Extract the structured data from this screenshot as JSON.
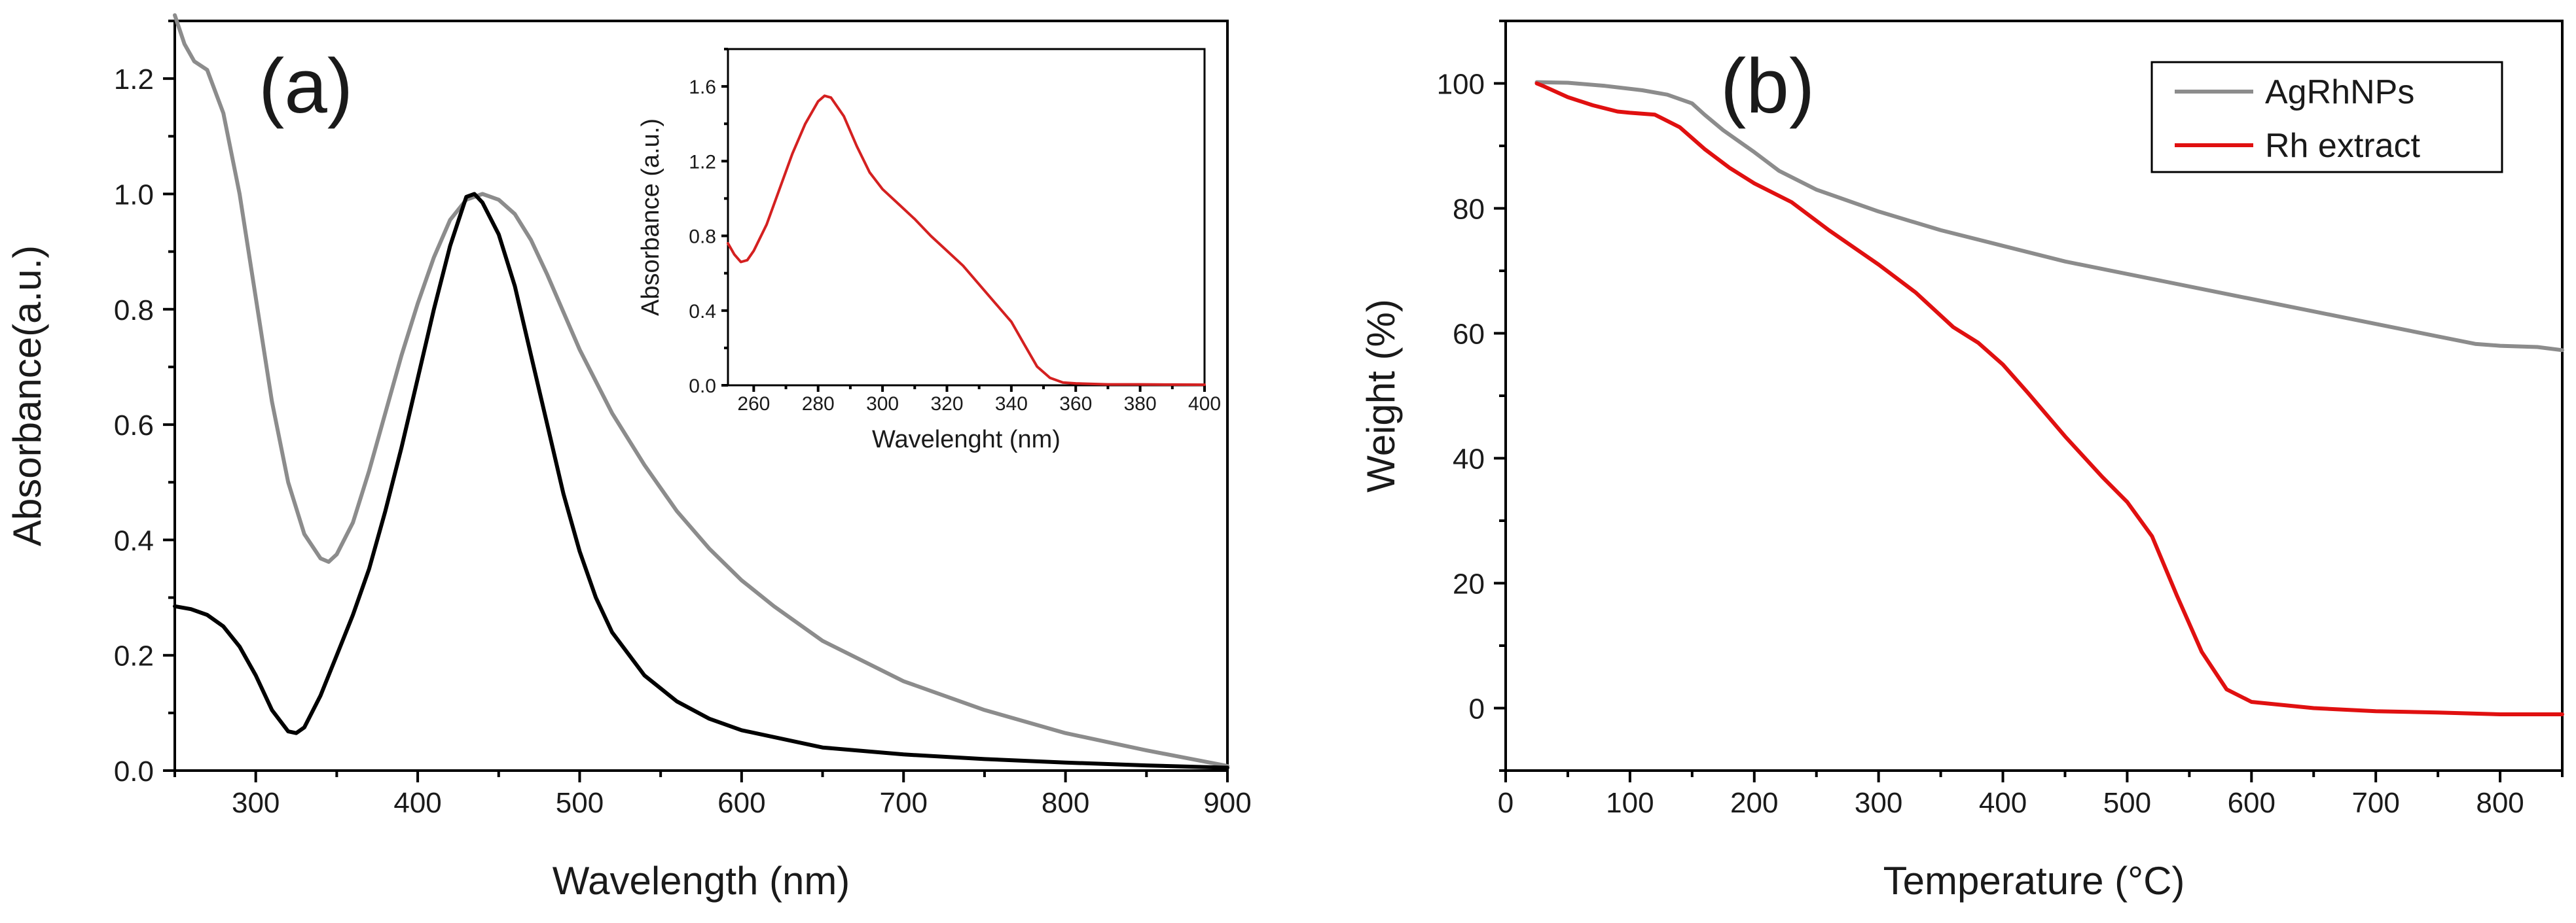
{
  "chart_data": [
    {
      "id": "a",
      "type": "line",
      "panel_label": "(a)",
      "xlabel": "Wavelength (nm)",
      "ylabel": "Absorbance(a.u.)",
      "xlim": [
        250,
        900
      ],
      "ylim": [
        0.0,
        1.3
      ],
      "xticks": [
        300,
        400,
        500,
        600,
        700,
        800,
        900
      ],
      "yticks": [
        0.0,
        0.2,
        0.4,
        0.6,
        0.8,
        1.0,
        1.2
      ],
      "x_tick_labels": [
        "300",
        "400",
        "500",
        "600",
        "700",
        "800",
        "900"
      ],
      "y_tick_labels": [
        "0.0",
        "0.2",
        "0.4",
        "0.6",
        "0.8",
        "1.0",
        "1.2"
      ],
      "series": [
        {
          "name": "gray spectrum",
          "color": "#8c8c8c",
          "points": [
            [
              250,
              1.31
            ],
            [
              256,
              1.26
            ],
            [
              262,
              1.23
            ],
            [
              270,
              1.215
            ],
            [
              280,
              1.14
            ],
            [
              290,
              1.0
            ],
            [
              300,
              0.82
            ],
            [
              310,
              0.64
            ],
            [
              320,
              0.5
            ],
            [
              330,
              0.41
            ],
            [
              340,
              0.368
            ],
            [
              345,
              0.362
            ],
            [
              350,
              0.375
            ],
            [
              360,
              0.43
            ],
            [
              370,
              0.52
            ],
            [
              380,
              0.62
            ],
            [
              390,
              0.72
            ],
            [
              400,
              0.81
            ],
            [
              410,
              0.89
            ],
            [
              420,
              0.955
            ],
            [
              430,
              0.99
            ],
            [
              440,
              1.0
            ],
            [
              450,
              0.99
            ],
            [
              460,
              0.965
            ],
            [
              470,
              0.92
            ],
            [
              480,
              0.86
            ],
            [
              490,
              0.795
            ],
            [
              500,
              0.73
            ],
            [
              520,
              0.62
            ],
            [
              540,
              0.53
            ],
            [
              560,
              0.45
            ],
            [
              580,
              0.385
            ],
            [
              600,
              0.33
            ],
            [
              620,
              0.285
            ],
            [
              650,
              0.225
            ],
            [
              700,
              0.155
            ],
            [
              750,
              0.105
            ],
            [
              800,
              0.065
            ],
            [
              850,
              0.035
            ],
            [
              900,
              0.008
            ]
          ]
        },
        {
          "name": "black spectrum",
          "color": "#000000",
          "points": [
            [
              250,
              0.285
            ],
            [
              260,
              0.28
            ],
            [
              270,
              0.27
            ],
            [
              280,
              0.25
            ],
            [
              290,
              0.215
            ],
            [
              300,
              0.165
            ],
            [
              310,
              0.105
            ],
            [
              320,
              0.068
            ],
            [
              325,
              0.065
            ],
            [
              330,
              0.075
            ],
            [
              340,
              0.13
            ],
            [
              350,
              0.2
            ],
            [
              360,
              0.27
            ],
            [
              370,
              0.35
            ],
            [
              380,
              0.45
            ],
            [
              390,
              0.56
            ],
            [
              400,
              0.68
            ],
            [
              410,
              0.8
            ],
            [
              420,
              0.91
            ],
            [
              430,
              0.995
            ],
            [
              435,
              1.0
            ],
            [
              440,
              0.985
            ],
            [
              450,
              0.93
            ],
            [
              460,
              0.84
            ],
            [
              470,
              0.72
            ],
            [
              480,
              0.6
            ],
            [
              490,
              0.48
            ],
            [
              500,
              0.38
            ],
            [
              510,
              0.3
            ],
            [
              520,
              0.24
            ],
            [
              540,
              0.165
            ],
            [
              560,
              0.12
            ],
            [
              580,
              0.09
            ],
            [
              600,
              0.07
            ],
            [
              650,
              0.04
            ],
            [
              700,
              0.028
            ],
            [
              750,
              0.02
            ],
            [
              800,
              0.014
            ],
            [
              850,
              0.009
            ],
            [
              900,
              0.005
            ]
          ]
        }
      ],
      "inset": {
        "type": "line",
        "xlabel": "Wavelenght (nm)",
        "ylabel": "Absorbance (a.u.)",
        "xlim": [
          252,
          400
        ],
        "ylim": [
          0.0,
          1.8
        ],
        "xticks": [
          260,
          280,
          300,
          320,
          340,
          360,
          380,
          400
        ],
        "yticks": [
          0.0,
          0.4,
          0.8,
          1.2,
          1.6
        ],
        "x_tick_labels": [
          "260",
          "280",
          "300",
          "320",
          "340",
          "360",
          "380",
          "400"
        ],
        "y_tick_labels": [
          "0.0",
          "0.4",
          "0.8",
          "1.2",
          "1.6"
        ],
        "series": [
          {
            "name": "Rh extract",
            "color": "#d42020",
            "points": [
              [
                252,
                0.76
              ],
              [
                254,
                0.7
              ],
              [
                256,
                0.66
              ],
              [
                258,
                0.67
              ],
              [
                260,
                0.72
              ],
              [
                264,
                0.86
              ],
              [
                268,
                1.05
              ],
              [
                272,
                1.24
              ],
              [
                276,
                1.4
              ],
              [
                280,
                1.52
              ],
              [
                282,
                1.55
              ],
              [
                284,
                1.54
              ],
              [
                288,
                1.44
              ],
              [
                292,
                1.28
              ],
              [
                296,
                1.14
              ],
              [
                300,
                1.05
              ],
              [
                305,
                0.97
              ],
              [
                310,
                0.89
              ],
              [
                315,
                0.8
              ],
              [
                320,
                0.72
              ],
              [
                325,
                0.64
              ],
              [
                330,
                0.54
              ],
              [
                335,
                0.44
              ],
              [
                340,
                0.34
              ],
              [
                344,
                0.22
              ],
              [
                348,
                0.1
              ],
              [
                352,
                0.04
              ],
              [
                356,
                0.015
              ],
              [
                360,
                0.01
              ],
              [
                370,
                0.005
              ],
              [
                380,
                0.005
              ],
              [
                390,
                0.004
              ],
              [
                400,
                0.003
              ]
            ]
          }
        ]
      }
    },
    {
      "id": "b",
      "type": "line",
      "panel_label": "(b)",
      "xlabel": "Temperature (°C)",
      "ylabel": "Weight (%)",
      "xlim": [
        0,
        850
      ],
      "ylim": [
        -10,
        110
      ],
      "xticks": [
        0,
        100,
        200,
        300,
        400,
        500,
        600,
        700,
        800
      ],
      "yticks": [
        0,
        20,
        40,
        60,
        80,
        100
      ],
      "x_tick_labels": [
        "0",
        "100",
        "200",
        "300",
        "400",
        "500",
        "600",
        "700",
        "800"
      ],
      "y_tick_labels": [
        "0",
        "20",
        "40",
        "60",
        "80",
        "100"
      ],
      "legend": {
        "position": "top-right",
        "entries": [
          "AgRhNPs",
          "Rh extract"
        ]
      },
      "series": [
        {
          "name": "AgRhNPs",
          "color": "#8c8c8c",
          "points": [
            [
              25,
              100.2
            ],
            [
              50,
              100.1
            ],
            [
              80,
              99.6
            ],
            [
              110,
              98.9
            ],
            [
              130,
              98.2
            ],
            [
              150,
              96.8
            ],
            [
              160,
              95.0
            ],
            [
              175,
              92.5
            ],
            [
              200,
              89.0
            ],
            [
              220,
              86.0
            ],
            [
              250,
              83.0
            ],
            [
              300,
              79.5
            ],
            [
              350,
              76.5
            ],
            [
              400,
              74.0
            ],
            [
              450,
              71.5
            ],
            [
              500,
              69.5
            ],
            [
              550,
              67.5
            ],
            [
              600,
              65.5
            ],
            [
              650,
              63.5
            ],
            [
              700,
              61.5
            ],
            [
              750,
              59.5
            ],
            [
              780,
              58.3
            ],
            [
              800,
              58.0
            ],
            [
              830,
              57.8
            ],
            [
              850,
              57.3
            ]
          ]
        },
        {
          "name": "Rh extract",
          "color": "#e01010",
          "points": [
            [
              25,
              100.0
            ],
            [
              30,
              99.6
            ],
            [
              50,
              97.8
            ],
            [
              70,
              96.5
            ],
            [
              90,
              95.5
            ],
            [
              100,
              95.3
            ],
            [
              120,
              95.0
            ],
            [
              140,
              93.0
            ],
            [
              160,
              89.5
            ],
            [
              180,
              86.5
            ],
            [
              200,
              84.0
            ],
            [
              230,
              81.0
            ],
            [
              260,
              76.5
            ],
            [
              300,
              71.0
            ],
            [
              330,
              66.5
            ],
            [
              360,
              61.0
            ],
            [
              380,
              58.5
            ],
            [
              400,
              55.0
            ],
            [
              420,
              50.5
            ],
            [
              450,
              43.5
            ],
            [
              480,
              37.0
            ],
            [
              500,
              33.0
            ],
            [
              520,
              27.5
            ],
            [
              540,
              18.0
            ],
            [
              560,
              9.0
            ],
            [
              580,
              3.0
            ],
            [
              600,
              1.0
            ],
            [
              650,
              0.0
            ],
            [
              700,
              -0.5
            ],
            [
              750,
              -0.7
            ],
            [
              800,
              -1.0
            ],
            [
              850,
              -1.0
            ]
          ]
        }
      ]
    }
  ]
}
